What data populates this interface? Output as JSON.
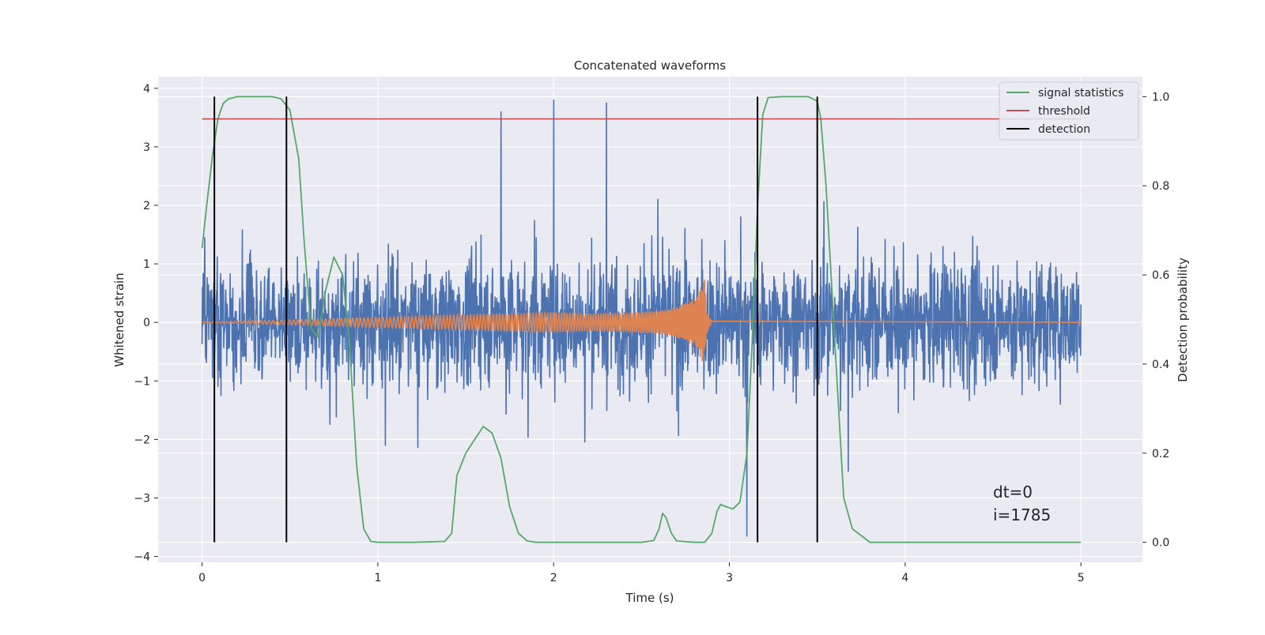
{
  "chart_data": {
    "type": "line",
    "title": "Concatenated waveforms",
    "xlabel": "Time (s)",
    "ylabel": "Whitened strain",
    "ylabel_right": "Detection probability",
    "xlim": [
      -0.25,
      5.35
    ],
    "ylim": [
      -4.1,
      4.2
    ],
    "ylim_right": [
      -0.045,
      1.045
    ],
    "x_ticks": [
      0,
      1,
      2,
      3,
      4,
      5
    ],
    "y_ticks": [
      -4,
      -3,
      -2,
      -1,
      0,
      1,
      2,
      3,
      4
    ],
    "y_ticks_right": [
      0.0,
      0.2,
      0.4,
      0.6,
      0.8,
      1.0
    ],
    "x_tick_labels": [
      "0",
      "1",
      "2",
      "3",
      "4",
      "5"
    ],
    "y_tick_labels": [
      "−4",
      "−3",
      "−2",
      "−1",
      "0",
      "1",
      "2",
      "3",
      "4"
    ],
    "y_tick_labels_right": [
      "0.0",
      "0.2",
      "0.4",
      "0.6",
      "0.8",
      "1.0"
    ],
    "grid": true,
    "legend_position": "top-right",
    "legend": [
      "signal statistics",
      "threshold",
      "detection"
    ],
    "annotations": [
      "dt=0",
      "i=1785"
    ],
    "colors": {
      "noise": "#4c72b0",
      "injected": "#dd8452",
      "statistics": "#55a868",
      "threshold": "#c44e52",
      "detection": "#000000",
      "plot_bg": "#eaeaf2",
      "grid": "#ffffff"
    },
    "series": [
      {
        "role": "whitened strain (noise)",
        "axis": "left",
        "x_range": [
          0,
          5
        ],
        "envelope_typical": [
          -2.0,
          2.4
        ],
        "peaks": [
          {
            "x": 1.7,
            "y": 3.6
          },
          {
            "x": 2.0,
            "y": 3.8
          },
          {
            "x": 2.3,
            "y": 3.75
          },
          {
            "x": 3.1,
            "y": -3.65
          }
        ]
      },
      {
        "role": "injected waveform",
        "axis": "left",
        "x": [
          0,
          2.0,
          2.2,
          2.4,
          2.6,
          2.7,
          2.8,
          2.86,
          2.87,
          2.9,
          5
        ],
        "amplitude": [
          0,
          0.17,
          0.15,
          0.16,
          0.2,
          0.26,
          0.4,
          0.74,
          0.2,
          0.02,
          0
        ]
      },
      {
        "name": "signal statistics",
        "axis": "right",
        "x": [
          0.0,
          0.03,
          0.06,
          0.09,
          0.12,
          0.15,
          0.2,
          0.3,
          0.4,
          0.45,
          0.5,
          0.55,
          0.58,
          0.62,
          0.66,
          0.7,
          0.75,
          0.8,
          0.84,
          0.88,
          0.92,
          0.96,
          1.0,
          1.2,
          1.38,
          1.42,
          1.45,
          1.5,
          1.55,
          1.6,
          1.65,
          1.7,
          1.75,
          1.8,
          1.85,
          1.9,
          2.0,
          2.5,
          2.57,
          2.6,
          2.62,
          2.64,
          2.67,
          2.7,
          2.8,
          2.86,
          2.9,
          2.93,
          2.95,
          2.98,
          3.02,
          3.06,
          3.1,
          3.13,
          3.16,
          3.19,
          3.22,
          3.3,
          3.45,
          3.5,
          3.52,
          3.55,
          3.6,
          3.65,
          3.7,
          3.75,
          3.8,
          4.0,
          4.5,
          5.0
        ],
        "y": [
          0.66,
          0.77,
          0.87,
          0.95,
          0.985,
          0.995,
          1.0,
          1.0,
          1.0,
          0.995,
          0.97,
          0.86,
          0.68,
          0.48,
          0.46,
          0.56,
          0.64,
          0.6,
          0.44,
          0.17,
          0.03,
          0.002,
          0.0,
          0.0,
          0.002,
          0.02,
          0.15,
          0.2,
          0.23,
          0.26,
          0.245,
          0.19,
          0.08,
          0.02,
          0.003,
          0.0,
          0.0,
          0.0,
          0.004,
          0.03,
          0.065,
          0.055,
          0.02,
          0.003,
          0.0,
          0.0,
          0.02,
          0.07,
          0.085,
          0.08,
          0.075,
          0.09,
          0.2,
          0.45,
          0.75,
          0.96,
          0.998,
          1.0,
          1.0,
          0.99,
          0.95,
          0.8,
          0.45,
          0.1,
          0.03,
          0.015,
          0.0,
          0.0,
          0.0,
          0.0
        ]
      },
      {
        "name": "threshold",
        "axis": "right",
        "x": [
          0,
          5
        ],
        "y": [
          0.95,
          0.95
        ]
      },
      {
        "name": "detection",
        "axis": "right",
        "x": [
          0.07,
          0.48,
          3.16,
          3.5
        ],
        "y_range": [
          0.0,
          1.0
        ]
      }
    ]
  }
}
